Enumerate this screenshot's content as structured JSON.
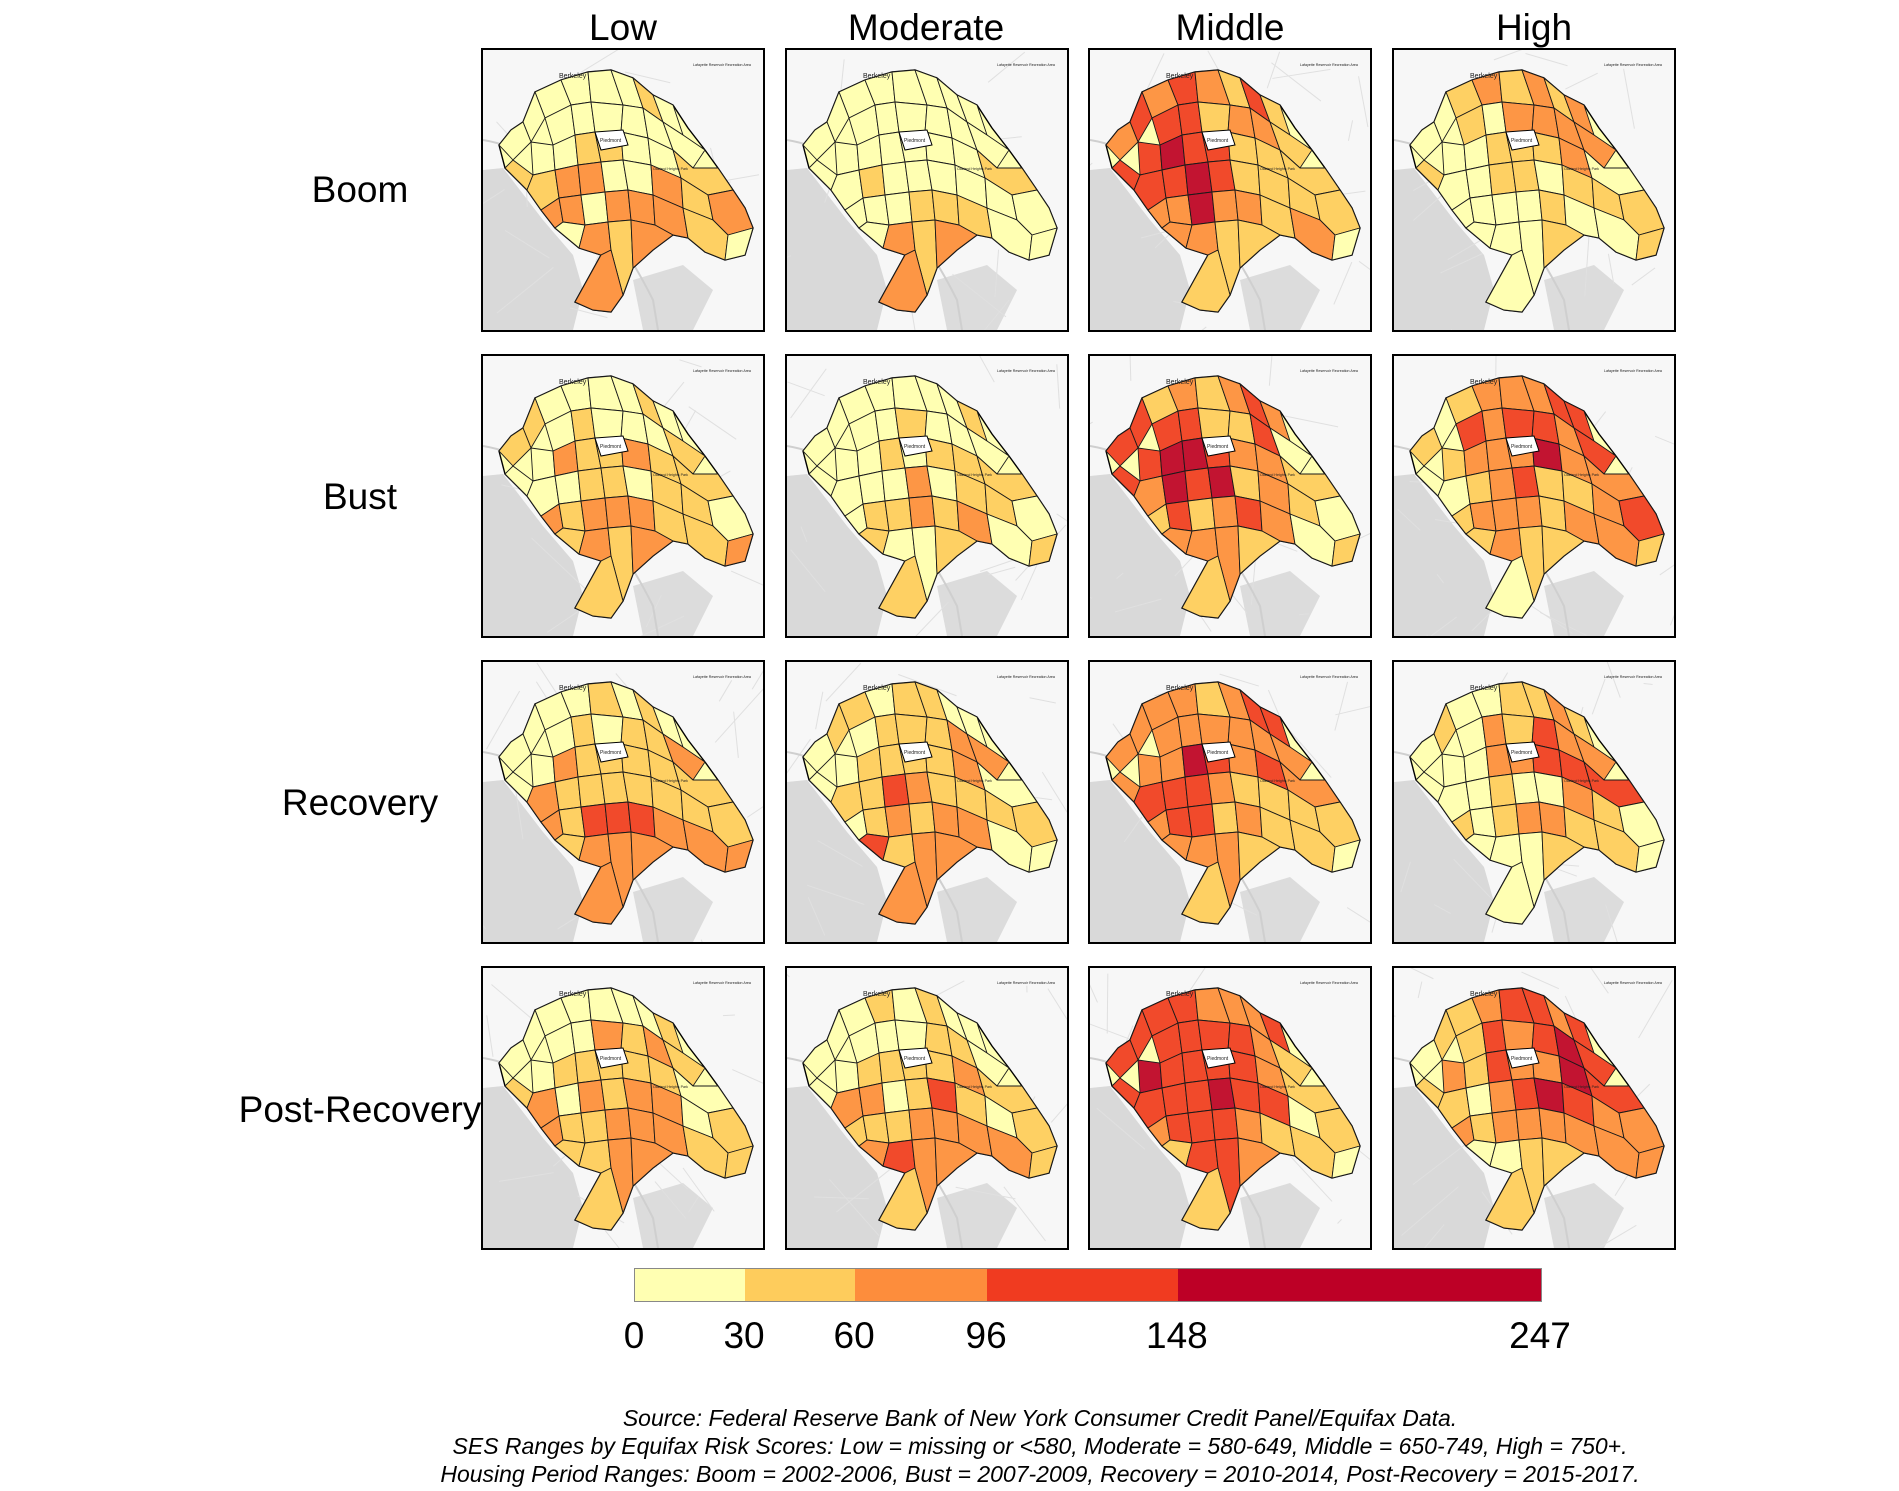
{
  "columns": [
    "Low",
    "Moderate",
    "Middle",
    "High"
  ],
  "rows": [
    "Boom",
    "Bust",
    "Recovery",
    "Post-Recovery"
  ],
  "legend": {
    "ticks": [
      "0",
      "30",
      "60",
      "96",
      "148",
      "247"
    ],
    "breaks": [
      0,
      30,
      60,
      96,
      148,
      247
    ],
    "colors": [
      "#ffffb2",
      "#fecc5c",
      "#fd8d3c",
      "#f03b20",
      "#bd0026"
    ]
  },
  "map_labels": {
    "berkeley": "Berkeley",
    "piedmont": "Piedmont",
    "lafayette": "Lafayette Reservoir Recreation Area",
    "heights": "Oakland Heights Park"
  },
  "chart_data": {
    "type": "heatmap",
    "description_levels": "choropleth class index per panel (0=0-30, 1=30-60, 2=60-96, 3=96-148, 4=148-247)",
    "panels": [
      {
        "row": "Boom",
        "col": "Low",
        "dominant_class": 1
      },
      {
        "row": "Boom",
        "col": "Moderate",
        "dominant_class": 0
      },
      {
        "row": "Boom",
        "col": "Middle",
        "dominant_class": 2
      },
      {
        "row": "Boom",
        "col": "High",
        "dominant_class": 1
      },
      {
        "row": "Bust",
        "col": "Low",
        "dominant_class": 1
      },
      {
        "row": "Bust",
        "col": "Moderate",
        "dominant_class": 0
      },
      {
        "row": "Bust",
        "col": "Middle",
        "dominant_class": 2
      },
      {
        "row": "Bust",
        "col": "High",
        "dominant_class": 2
      },
      {
        "row": "Recovery",
        "col": "Low",
        "dominant_class": 1
      },
      {
        "row": "Recovery",
        "col": "Moderate",
        "dominant_class": 1
      },
      {
        "row": "Recovery",
        "col": "Middle",
        "dominant_class": 2
      },
      {
        "row": "Recovery",
        "col": "High",
        "dominant_class": 1
      },
      {
        "row": "Post-Recovery",
        "col": "Low",
        "dominant_class": 1
      },
      {
        "row": "Post-Recovery",
        "col": "Moderate",
        "dominant_class": 1
      },
      {
        "row": "Post-Recovery",
        "col": "Middle",
        "dominant_class": 2
      },
      {
        "row": "Post-Recovery",
        "col": "High",
        "dominant_class": 2
      }
    ]
  },
  "footer": {
    "line1": "Source: Federal Reserve Bank of New York Consumer Credit Panel/Equifax Data.",
    "line2": "SES Ranges by Equifax Risk Scores: Low = missing or <580, Moderate = 580-649, Middle = 650-749, High = 750+.",
    "line3": "Housing Period Ranges: Boom = 2002-2006, Bust = 2007-2009, Recovery = 2010-2014, Post-Recovery = 2015-2017."
  }
}
